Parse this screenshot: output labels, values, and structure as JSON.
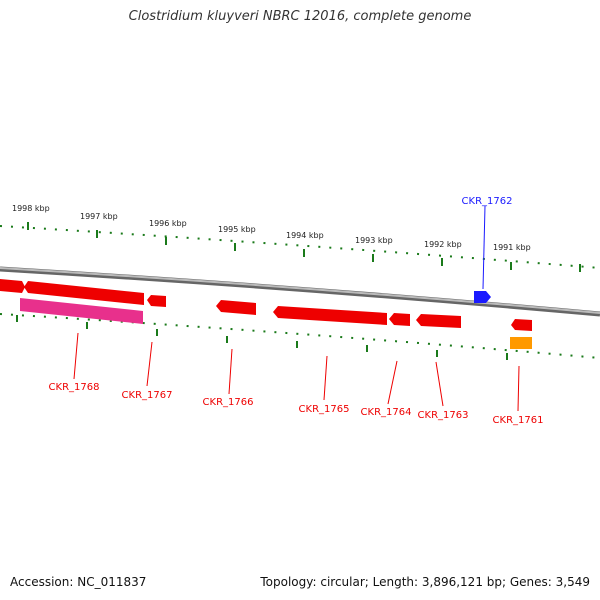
{
  "title": "Clostridium kluyveri NBRC 12016, complete genome",
  "footer": {
    "accession": "Accession: NC_011837",
    "summary": "Topology: circular; Length: 3,896,121 bp; Genes: 3,549"
  },
  "kbp_labels": [
    "1998 kbp",
    "1997 kbp",
    "1996 kbp",
    "1995 kbp",
    "1994 kbp",
    "1993 kbp",
    "1992 kbp",
    "1991 kbp"
  ],
  "gene_labels": [
    "CKR_1762",
    "CKR_1768",
    "CKR_1767",
    "CKR_1766",
    "CKR_1765",
    "CKR_1764",
    "CKR_1763",
    "CKR_1761"
  ],
  "colors": {
    "forward_gene": "#1a1aff",
    "reverse_gene": "#ee0000",
    "highlight_gene": "#e8308c",
    "orange_gene": "#ff9900",
    "backbone": "#888888",
    "tick": "#1a7a1a"
  }
}
